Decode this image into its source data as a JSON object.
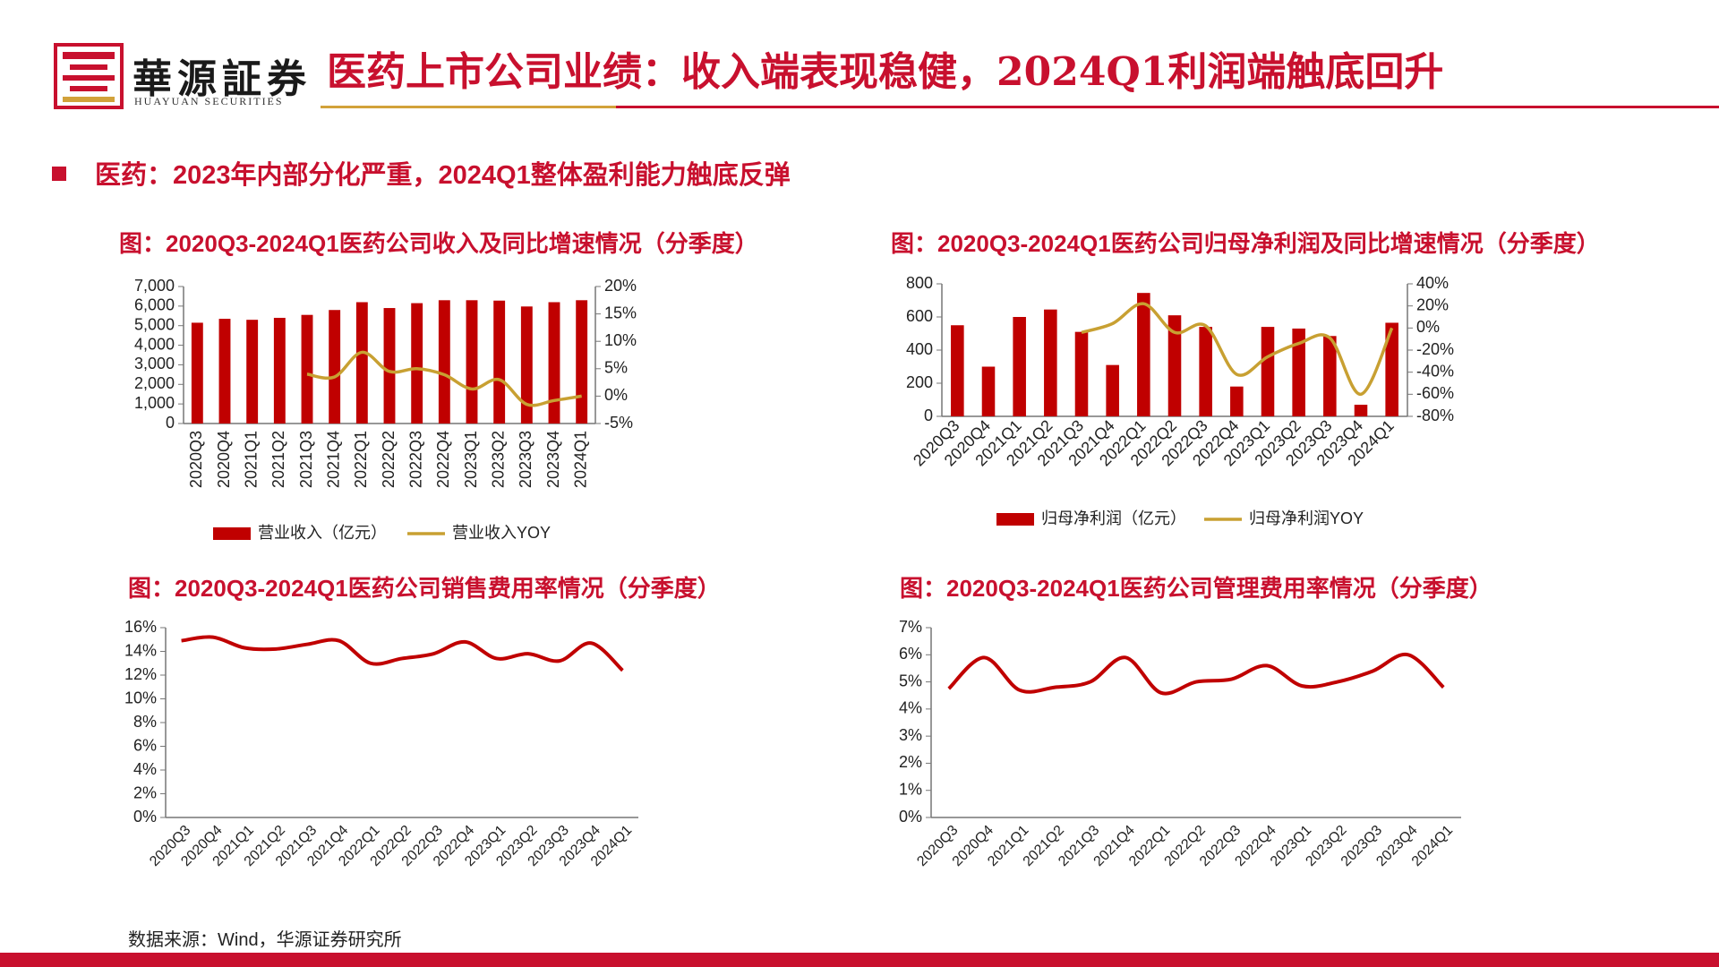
{
  "header": {
    "brand_cn": "華源証券",
    "brand_en": "HUAYUAN SECURITIES",
    "title": "医药上市公司业绩：收入端表现稳健，2024Q1利润端触底回升",
    "logo_icon": "seal-logo-icon",
    "accent_color": "#c8102e",
    "gold_color": "#d2a23a"
  },
  "section_title": "医药：2023年内部分化严重，2024Q1整体盈利能力触底反弹",
  "source": "数据来源：Wind，华源证券研究所",
  "chart_data": [
    {
      "type": "bar+line",
      "title": "图：2020Q3-2024Q1医药公司收入及同比增速情况（分季度）",
      "categories": [
        "2020Q3",
        "2020Q4",
        "2021Q1",
        "2021Q2",
        "2021Q3",
        "2021Q4",
        "2022Q1",
        "2022Q2",
        "2022Q3",
        "2022Q4",
        "2023Q1",
        "2023Q2",
        "2023Q3",
        "2023Q4",
        "2024Q1"
      ],
      "bar_series": {
        "name": "营业收入（亿元）",
        "values": [
          5150,
          5350,
          5300,
          5400,
          5550,
          5800,
          6200,
          5900,
          6150,
          6300,
          6300,
          6280,
          5980,
          6200,
          6300
        ],
        "color": "#c00000"
      },
      "line_series": {
        "name": "营业收入YOY",
        "values": [
          null,
          null,
          null,
          null,
          4,
          3.5,
          8,
          4.5,
          5,
          3.9,
          1.3,
          3,
          -1.5,
          -0.8,
          0.0
        ],
        "color": "#c8a032"
      },
      "yleft_ticks": [
        "7,000",
        "6,000",
        "5,000",
        "4,000",
        "3,000",
        "2,000",
        "1,000",
        "0"
      ],
      "yright_ticks": [
        "20%",
        "15%",
        "10%",
        "5%",
        "0%",
        "-5%"
      ],
      "yleft_range": [
        0,
        7000
      ],
      "yright_range": [
        -5,
        20
      ]
    },
    {
      "type": "bar+line",
      "title": "图：2020Q3-2024Q1医药公司归母净利润及同比增速情况（分季度）",
      "categories": [
        "2020Q3",
        "2020Q4",
        "2021Q1",
        "2021Q2",
        "2021Q3",
        "2021Q4",
        "2022Q1",
        "2022Q2",
        "2022Q3",
        "2022Q4",
        "2023Q1",
        "2023Q2",
        "2023Q3",
        "2023Q4",
        "2024Q1"
      ],
      "bar_series": {
        "name": "归母净利润（亿元）",
        "values": [
          550,
          300,
          600,
          645,
          510,
          310,
          745,
          610,
          540,
          180,
          540,
          530,
          485,
          70,
          565
        ],
        "color": "#c00000"
      },
      "line_series": {
        "name": "归母净利润YOY",
        "values": [
          null,
          null,
          null,
          null,
          -4,
          4,
          22,
          -4,
          2,
          -42,
          -26,
          -14,
          -9,
          -60,
          0
        ],
        "color": "#c8a032"
      },
      "yleft_ticks": [
        "800",
        "600",
        "400",
        "200",
        "0"
      ],
      "yright_ticks": [
        "40%",
        "20%",
        "0%",
        "-20%",
        "-40%",
        "-60%",
        "-80%"
      ],
      "yleft_range": [
        0,
        800
      ],
      "yright_range": [
        -80,
        40
      ]
    },
    {
      "type": "line",
      "title": "图：2020Q3-2024Q1医药公司销售费用率情况（分季度）",
      "categories": [
        "2020Q3",
        "2020Q4",
        "2021Q1",
        "2021Q2",
        "2021Q3",
        "2021Q4",
        "2022Q1",
        "2022Q2",
        "2022Q3",
        "2022Q4",
        "2023Q1",
        "2023Q2",
        "2023Q3",
        "2023Q4",
        "2024Q1"
      ],
      "values": [
        14.9,
        15.2,
        14.3,
        14.2,
        14.6,
        14.9,
        13.0,
        13.4,
        13.8,
        14.8,
        13.4,
        13.8,
        13.2,
        14.7,
        12.4
      ],
      "y_ticks": [
        "16%",
        "14%",
        "12%",
        "10%",
        "8%",
        "6%",
        "4%",
        "2%",
        "0%"
      ],
      "y_range": [
        0,
        16
      ],
      "color": "#c00000"
    },
    {
      "type": "line",
      "title": "图：2020Q3-2024Q1医药公司管理费用率情况（分季度）",
      "categories": [
        "2020Q3",
        "2020Q4",
        "2021Q1",
        "2021Q2",
        "2021Q3",
        "2021Q4",
        "2022Q1",
        "2022Q2",
        "2022Q3",
        "2022Q4",
        "2023Q1",
        "2023Q2",
        "2023Q3",
        "2023Q4",
        "2024Q1"
      ],
      "values": [
        4.75,
        5.9,
        4.7,
        4.8,
        5.0,
        5.9,
        4.6,
        5.0,
        5.1,
        5.6,
        4.85,
        5.0,
        5.4,
        6.0,
        4.8
      ],
      "y_ticks": [
        "7%",
        "6%",
        "5%",
        "4%",
        "3%",
        "2%",
        "1%",
        "0%"
      ],
      "y_range": [
        0,
        7
      ],
      "color": "#c00000"
    }
  ]
}
